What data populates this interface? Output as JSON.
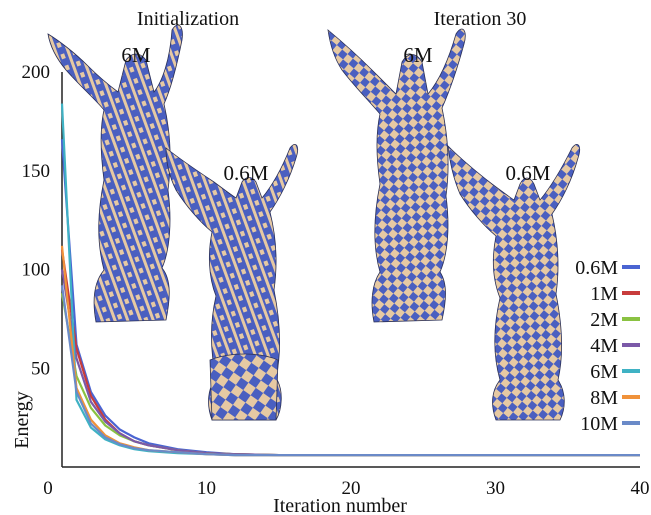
{
  "captions": {
    "initialization": "Initialization",
    "iteration30": "Iteration 30"
  },
  "mesh_labels": {
    "init_large": "6M",
    "init_small": "0.6M",
    "iter_large": "6M",
    "iter_small": "0.6M"
  },
  "colors": {
    "mesh_blue": "#4a5fc0",
    "mesh_beige": "#e6c9a3"
  },
  "chart_data": {
    "type": "line",
    "xlabel": "Iteration number",
    "ylabel": "Energy",
    "xlim": [
      0,
      40
    ],
    "ylim": [
      0,
      200
    ],
    "xticks": [
      0,
      10,
      20,
      30,
      40
    ],
    "yticks": [
      0,
      50,
      100,
      150,
      200
    ],
    "x": [
      0,
      1,
      2,
      3,
      4,
      5,
      6,
      8,
      10,
      12,
      15,
      20,
      25,
      30,
      35,
      40
    ],
    "legend_position": "right",
    "grid": false,
    "series": [
      {
        "name": "0.6M",
        "color": "#4a64d2",
        "values": [
          166,
          62,
          38,
          26,
          19,
          15,
          12,
          9,
          7.5,
          6.5,
          6,
          6,
          6,
          6,
          6,
          6
        ]
      },
      {
        "name": "1M",
        "color": "#c83c3c",
        "values": [
          110,
          60,
          36,
          24,
          17,
          13,
          11,
          8.5,
          7,
          6.5,
          6,
          6,
          6,
          6,
          6,
          6
        ]
      },
      {
        "name": "2M",
        "color": "#8ac242",
        "values": [
          88,
          46,
          30,
          21,
          16,
          13,
          11,
          8.5,
          7,
          6.5,
          6,
          6,
          6,
          6,
          6,
          6
        ]
      },
      {
        "name": "4M",
        "color": "#7b59a8",
        "values": [
          100,
          55,
          33,
          23,
          17,
          13,
          11,
          8.5,
          7,
          6.5,
          6,
          6,
          6,
          6,
          6,
          6
        ]
      },
      {
        "name": "6M",
        "color": "#3fb2c4",
        "values": [
          184,
          34,
          20,
          14,
          11,
          9,
          8,
          7,
          6.5,
          6,
          6,
          6,
          6,
          6,
          6,
          6
        ]
      },
      {
        "name": "8M",
        "color": "#f0923a",
        "values": [
          112,
          40,
          24,
          16,
          12,
          10,
          8.5,
          7.5,
          6.5,
          6,
          6,
          6,
          6,
          6,
          6,
          6
        ]
      },
      {
        "name": "10M",
        "color": "#6a8ac8",
        "values": [
          92,
          38,
          22,
          15,
          11.5,
          9.5,
          8.5,
          7.5,
          6.5,
          6,
          6,
          6,
          6,
          6,
          6,
          6
        ]
      }
    ]
  }
}
